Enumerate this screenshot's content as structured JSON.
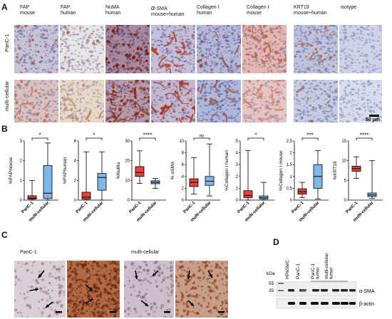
{
  "panelA": {
    "letter": "A",
    "columns": [
      {
        "l1": "FAP",
        "l2": "mouse",
        "greek": false
      },
      {
        "l1": "FAP",
        "l2": "human",
        "greek": false
      },
      {
        "l1": "NuMA",
        "l2": "human",
        "greek": false
      },
      {
        "l1": "-SMA",
        "l2": "mouse+human",
        "greek": true,
        "greek_char": "α"
      },
      {
        "l1": "Collagen I",
        "l2": "human",
        "greek": false
      },
      {
        "l1": "Collagen I",
        "l2": "mouse",
        "greek": false
      },
      {
        "l1": "KRT19",
        "l2": "mouse+human",
        "greek": false
      },
      {
        "l1": "isotype",
        "l2": "",
        "greek": false
      }
    ],
    "rows": [
      "PanC-1",
      "multi-cellular"
    ],
    "scalebar": "50 µm"
  },
  "panelB": {
    "letter": "B",
    "groups": [
      "PanC-1",
      "multi-cellular"
    ],
    "colors": {
      "panc1": "#e8423a",
      "multi": "#7fb7e8"
    }
  },
  "chart_data": [
    {
      "type": "box",
      "ylabel": "%FAPmouse",
      "ylim": [
        0,
        3
      ],
      "yticks": [
        0,
        1,
        2,
        3
      ],
      "series": [
        {
          "name": "PanC-1",
          "min": 0,
          "q1": 0.05,
          "median": 0.1,
          "q3": 0.22,
          "max": 1.0
        },
        {
          "name": "multi-cellular",
          "min": 0,
          "q1": 0.08,
          "median": 0.35,
          "q3": 1.75,
          "max": 2.9
        }
      ],
      "significance": "*"
    },
    {
      "type": "box",
      "ylabel": "%FAPhuman",
      "ylim": [
        0,
        6
      ],
      "yticks": [
        0,
        2,
        4,
        6
      ],
      "series": [
        {
          "name": "PanC-1",
          "min": 0,
          "q1": 0.1,
          "median": 0.3,
          "q3": 0.8,
          "max": 4.9
        },
        {
          "name": "multi-cellular",
          "min": 0,
          "q1": 1.0,
          "median": 2.3,
          "q3": 2.7,
          "max": 4.9
        }
      ],
      "significance": "*"
    },
    {
      "type": "box",
      "ylabel": "%NuMa",
      "ylim": [
        0,
        30
      ],
      "yticks": [
        0,
        10,
        20,
        30
      ],
      "series": [
        {
          "name": "PanC-1",
          "min": 8.5,
          "q1": 12,
          "median": 14,
          "q3": 17,
          "max": 25
        },
        {
          "name": "multi-cellular",
          "min": 6,
          "q1": 8.3,
          "median": 9,
          "q3": 9.8,
          "max": 11
        }
      ],
      "significance": "****"
    },
    {
      "type": "box",
      "ylabel": "% αSMA",
      "ylim": [
        0,
        10
      ],
      "yticks": [
        0,
        2,
        4,
        6,
        8,
        10
      ],
      "series": [
        {
          "name": "PanC-1",
          "min": 1,
          "q1": 2.3,
          "median": 3,
          "q3": 3.6,
          "max": 7.2
        },
        {
          "name": "multi-cellular",
          "min": 0.7,
          "q1": 2.5,
          "median": 3.2,
          "q3": 4,
          "max": 9.5
        }
      ],
      "significance": "ns"
    },
    {
      "type": "box",
      "ylabel": "%Collagen I human",
      "ylim": [
        0,
        5
      ],
      "yticks": [
        0,
        1,
        2,
        3,
        4,
        5
      ],
      "series": [
        {
          "name": "PanC-1",
          "min": 0,
          "q1": 0.2,
          "median": 0.4,
          "q3": 0.8,
          "max": 4.2
        },
        {
          "name": "multi-cellular",
          "min": 0,
          "q1": 0.1,
          "median": 0.2,
          "q3": 0.35,
          "max": 1.5
        }
      ],
      "significance": "*"
    },
    {
      "type": "box",
      "ylabel": "%Collagen I mouse",
      "ylim": [
        0,
        2.5
      ],
      "yticks": [
        0,
        0.5,
        1,
        1.5,
        2,
        2.5
      ],
      "series": [
        {
          "name": "PanC-1",
          "min": 0.1,
          "q1": 0.25,
          "median": 0.35,
          "q3": 0.48,
          "max": 0.75
        },
        {
          "name": "multi-cellular",
          "min": 0.05,
          "q1": 0.5,
          "median": 1.0,
          "q3": 1.5,
          "max": 2.1
        }
      ],
      "significance": "***"
    },
    {
      "type": "box",
      "ylabel": "%KRT19",
      "ylim": [
        0,
        15
      ],
      "yticks": [
        0,
        5,
        10,
        15
      ],
      "series": [
        {
          "name": "PanC-1",
          "min": 5.5,
          "q1": 7.3,
          "median": 8,
          "q3": 8.6,
          "max": 11
        },
        {
          "name": "multi-cellular",
          "min": 0.4,
          "q1": 0.9,
          "median": 1.3,
          "q3": 1.8,
          "max": 10
        }
      ],
      "significance": "****"
    }
  ],
  "panelC": {
    "letter": "C",
    "left_label": "PanC-1",
    "right_label": "multi-cellular"
  },
  "panelD": {
    "letter": "D",
    "lanes": [
      "HPaSteC",
      "PanC-1",
      "PanC-1 tumor",
      "multi-cellular tumor"
    ],
    "kda_label": "kDa",
    "markers": [
      "55",
      "35"
    ],
    "bands": [
      "α-SMA",
      "β-actin"
    ]
  }
}
